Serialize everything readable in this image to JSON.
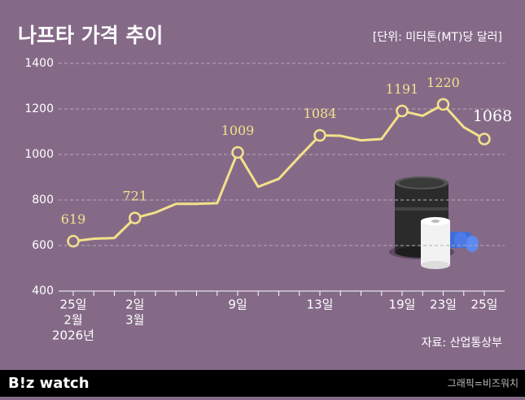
{
  "chart_data": {
    "type": "line",
    "title": "나프타 가격 추이",
    "subtitle": "[단위: 미터톤(MT)당 달러]",
    "source": "자료: 산업통상부",
    "brand": "B!z watch",
    "credit": "그래픽=비즈워치",
    "categories": [
      [
        "25일",
        "2월",
        "2026년"
      ],
      null,
      null,
      [
        "2일",
        "3월"
      ],
      null,
      null,
      null,
      null,
      [
        "9일"
      ],
      null,
      null,
      null,
      [
        "13일"
      ],
      null,
      null,
      null,
      [
        "19일"
      ],
      null,
      [
        "23일"
      ],
      null,
      [
        "25일"
      ]
    ],
    "values": [
      619,
      630,
      633,
      721,
      745,
      783,
      783,
      786,
      1009,
      858,
      893,
      990,
      1084,
      1082,
      1062,
      1068,
      1191,
      1170,
      1220,
      1120,
      1068
    ],
    "value_labels": [
      "619",
      null,
      null,
      "721",
      null,
      null,
      null,
      null,
      "1009",
      null,
      null,
      null,
      "1084",
      null,
      null,
      null,
      "1191",
      null,
      "1220",
      null,
      "1068"
    ],
    "color": "#f3e18a",
    "ylim": [
      400,
      1400
    ],
    "yticks": [
      400,
      600,
      800,
      1000,
      1200,
      1400
    ],
    "grid": true
  }
}
